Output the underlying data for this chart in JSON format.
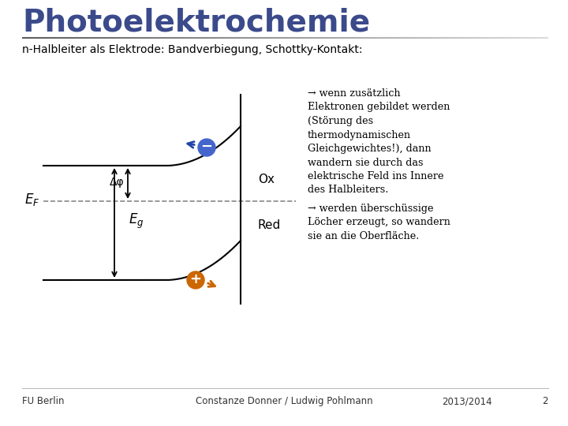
{
  "title": "Photoelektrochemie",
  "subtitle": "n-Halbleiter als Elektrode: Bandverbiegung, Schottky-Kontakt:",
  "title_color": "#3B4A8B",
  "title_fontsize": 28,
  "subtitle_fontsize": 10,
  "bg_color": "#FFFFFF",
  "footer_left": "FU Berlin",
  "footer_center": "Constanze Donner / Ludwig Pohlmann",
  "footer_right": "2013/2014",
  "footer_page": "2",
  "ef_label": "E",
  "ef_sub": "F",
  "eg_label": "E",
  "eg_sub": "g",
  "dphi_label": "Δφ",
  "ox_label": "Ox",
  "red_label": "Red",
  "text_right_1": "→ wenn zusätzlich\nElektronen gebildet werden\n(Störung des\nthermodynamischen\nGleichgewichtes!), dann\nwandern sie durch das\nelektrische Feld ins Innere\ndes Halbleiters.",
  "text_right_2": "→ werden überschüssige\nLöcher erzeugt, so wandern\nsie an die Oberfläche.",
  "line_color": "#000000",
  "dashed_color": "#888888",
  "band_color": "#000000",
  "electron_color": "#4466CC",
  "hole_color": "#CC6600",
  "arrow_electron_color": "#2244AA",
  "arrow_hole_color": "#CC6600",
  "separator_color": "#888888"
}
